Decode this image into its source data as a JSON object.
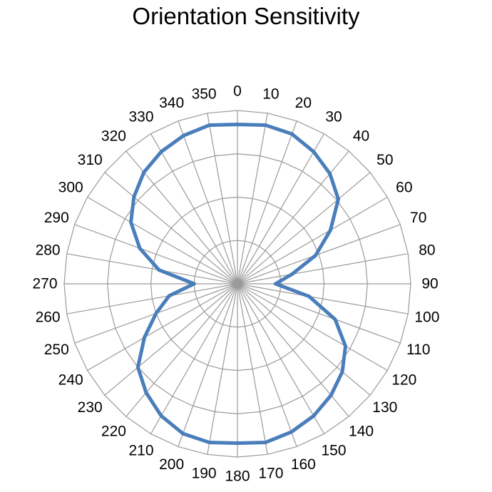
{
  "chart_data": {
    "type": "radar",
    "title": "Orientation Sensitivity",
    "angular_unit": "degrees",
    "angle_direction": "clockwise",
    "zero_location": "top",
    "theta": [
      0,
      10,
      20,
      30,
      40,
      50,
      60,
      70,
      80,
      90,
      100,
      110,
      120,
      130,
      140,
      150,
      160,
      170,
      180,
      190,
      200,
      210,
      220,
      230,
      240,
      250,
      260,
      270,
      280,
      290,
      300,
      310,
      320,
      330,
      340,
      350
    ],
    "theta_labels": [
      "0",
      "10",
      "20",
      "30",
      "40",
      "50",
      "60",
      "70",
      "80",
      "90",
      "100",
      "110",
      "120",
      "130",
      "140",
      "150",
      "160",
      "170",
      "180",
      "190",
      "200",
      "210",
      "220",
      "230",
      "240",
      "250",
      "260",
      "270",
      "280",
      "290",
      "300",
      "310",
      "320",
      "330",
      "340",
      "350"
    ],
    "radial_range": [
      0,
      1
    ],
    "radial_rings": [
      0.25,
      0.5,
      0.75,
      1.0
    ],
    "radial_tick_labels_visible": false,
    "grid": true,
    "series": [
      {
        "color": "#4a7ebb",
        "values": [
          0.92,
          0.93,
          0.92,
          0.88,
          0.83,
          0.76,
          0.62,
          0.48,
          0.32,
          0.22,
          0.42,
          0.6,
          0.72,
          0.79,
          0.84,
          0.88,
          0.91,
          0.93,
          0.92,
          0.93,
          0.92,
          0.88,
          0.82,
          0.75,
          0.62,
          0.5,
          0.4,
          0.25,
          0.46,
          0.6,
          0.71,
          0.78,
          0.84,
          0.88,
          0.91,
          0.93
        ]
      }
    ]
  }
}
